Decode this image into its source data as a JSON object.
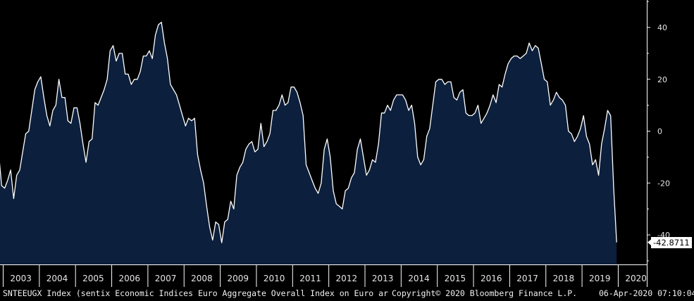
{
  "chart_data": {
    "type": "area",
    "ylim": [
      -50,
      50
    ],
    "y_ticks": [
      40,
      20,
      0,
      -20,
      -40
    ],
    "y_tick_labels": [
      "40",
      "20",
      "0",
      "-20",
      "-40"
    ],
    "x_tick_labels": [
      "2003",
      "2004",
      "2005",
      "2006",
      "2007",
      "2008",
      "2009",
      "2010",
      "2011",
      "2012",
      "2013",
      "2014",
      "2015",
      "2016",
      "2017",
      "2018",
      "2019",
      "2020"
    ],
    "x_start": 2002.8,
    "x_step_months": 1,
    "series": [
      {
        "values": [
          13.5,
          -8,
          -21,
          -22,
          -19,
          -15,
          -26,
          -17,
          -15,
          -8,
          -1,
          0,
          8,
          16,
          19,
          21,
          13,
          6,
          2,
          8,
          10,
          20,
          13,
          13,
          4,
          3,
          9,
          9,
          3,
          -5,
          -12,
          -4,
          -3,
          11,
          10,
          13,
          16,
          20,
          31,
          33,
          27,
          30,
          30,
          22,
          22,
          18,
          20,
          20,
          23,
          29,
          29,
          31,
          28,
          37,
          41,
          42,
          34,
          28,
          18,
          16,
          14,
          10,
          6,
          2,
          5,
          4,
          5,
          -9,
          -15,
          -20,
          -29,
          -37,
          -42,
          -35,
          -36,
          -43,
          -35,
          -34,
          -27,
          -30,
          -17,
          -14,
          -12,
          -7,
          -5,
          -4,
          -8,
          -7,
          3,
          -6,
          -4,
          -1,
          8,
          8,
          10,
          14,
          10,
          11,
          17,
          17,
          15,
          11,
          6,
          -13,
          -16,
          -19,
          -22,
          -24,
          -20,
          -7,
          -3,
          -10,
          -23,
          -28,
          -29,
          -30,
          -23,
          -22,
          -18,
          -16,
          -7,
          -3,
          -10,
          -17,
          -15,
          -11,
          -12,
          -5,
          7,
          7,
          10,
          8,
          12,
          14,
          14,
          14,
          12,
          8,
          10,
          3,
          -10,
          -13,
          -11,
          -2,
          1,
          10,
          19,
          20,
          20,
          18,
          19,
          19,
          13,
          12,
          15,
          16,
          7,
          6,
          6,
          7,
          10,
          3,
          5,
          7,
          10,
          14,
          11,
          18,
          17,
          22,
          26,
          28,
          29,
          29,
          28,
          29,
          30,
          34,
          31,
          33,
          32,
          26,
          20,
          19,
          10,
          12,
          15,
          13,
          12,
          10,
          0,
          -1,
          -4,
          -2,
          1,
          6,
          -2,
          -5,
          -13,
          -11,
          -17,
          -5,
          1,
          8,
          6,
          -22,
          -42.8711
        ]
      }
    ],
    "last_value_label": "-42.8711"
  },
  "footer": {
    "left": "SNTEEUGX Index (sentix Economic Indices Euro Aggregate  Overall Index on Euro ar",
    "center": "Copyright© 2020 Bloomberg Finance L.P.",
    "right": "06-Apr-2020 07:10:04"
  },
  "colors": {
    "background": "#000000",
    "area_fill": "#0c1f3c",
    "line": "#ffffff",
    "axis": "#ffffff",
    "text": "#e6e6e6"
  }
}
